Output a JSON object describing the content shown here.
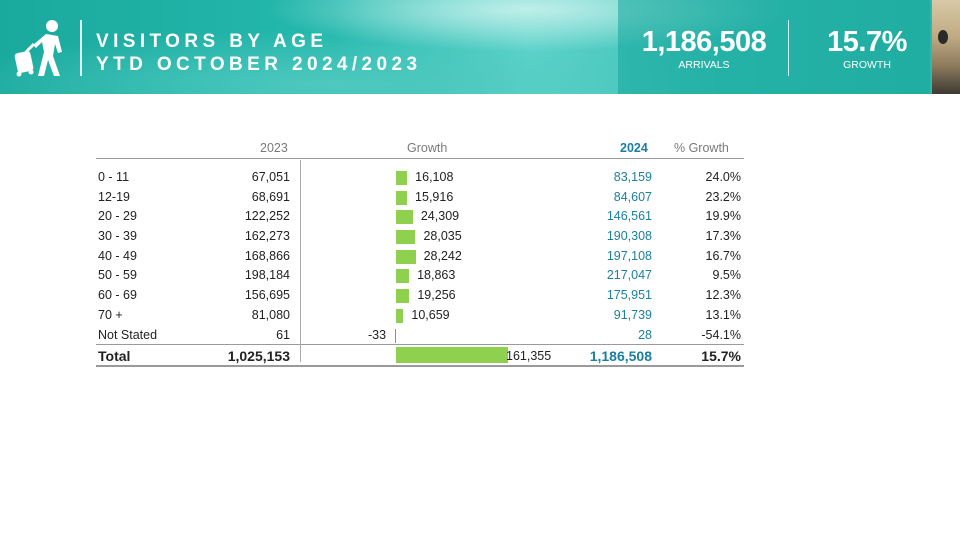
{
  "header": {
    "title_line1": "VISITORS BY AGE",
    "title_line2": "YTD OCTOBER 2024/2023",
    "arrivals_value": "1,186,508",
    "arrivals_label": "ARRIVALS",
    "growth_value": "15.7%",
    "growth_label": "GROWTH",
    "icon": "traveler-luggage-icon"
  },
  "table": {
    "columns": {
      "y2023": "2023",
      "growth": "Growth",
      "y2024": "2024",
      "pct": "% Growth"
    },
    "growth_max": 161355,
    "rows": [
      {
        "label": "0 - 11",
        "y2023": "67,051",
        "growth": "16,108",
        "growth_num": 16108,
        "y2024": "83,159",
        "pct": "24.0%"
      },
      {
        "label": "12-19",
        "y2023": "68,691",
        "growth": "15,916",
        "growth_num": 15916,
        "y2024": "84,607",
        "pct": "23.2%"
      },
      {
        "label": "20 - 29",
        "y2023": "122,252",
        "growth": "24,309",
        "growth_num": 24309,
        "y2024": "146,561",
        "pct": "19.9%"
      },
      {
        "label": "30 - 39",
        "y2023": "162,273",
        "growth": "28,035",
        "growth_num": 28035,
        "y2024": "190,308",
        "pct": "17.3%"
      },
      {
        "label": "40 - 49",
        "y2023": "168,866",
        "growth": "28,242",
        "growth_num": 28242,
        "y2024": "197,108",
        "pct": "16.7%"
      },
      {
        "label": "50 - 59",
        "y2023": "198,184",
        "growth": "18,863",
        "growth_num": 18863,
        "y2024": "217,047",
        "pct": "9.5%"
      },
      {
        "label": "60 - 69",
        "y2023": "156,695",
        "growth": "19,256",
        "growth_num": 19256,
        "y2024": "175,951",
        "pct": "12.3%"
      },
      {
        "label": "70 +",
        "y2023": "81,080",
        "growth": "10,659",
        "growth_num": 10659,
        "y2024": "91,739",
        "pct": "13.1%"
      },
      {
        "label": "Not Stated",
        "y2023": "61",
        "growth": "-33",
        "growth_num": -33,
        "y2024": "28",
        "pct": "-54.1%"
      }
    ],
    "total": {
      "label": "Total",
      "y2023": "1,025,153",
      "growth": "161,355",
      "growth_num": 161355,
      "y2024": "1,186,508",
      "pct": "15.7%"
    }
  },
  "colors": {
    "bar_positive": "#8fd14f",
    "bar_negative": "#e46a6a",
    "accent_2024": "#1a7fa0",
    "banner": "#25b8ad"
  }
}
